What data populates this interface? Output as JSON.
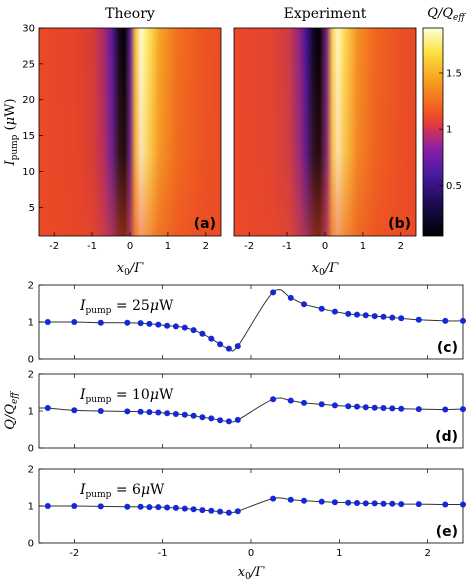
{
  "chart_data": [
    {
      "type": "heatmap",
      "title": "Theory",
      "panel_label": "(a)",
      "xlabel": "x₀/Γ",
      "ylabel": "I_pump (μW)",
      "xlim": [
        -2.4,
        2.4
      ],
      "ylim": [
        1,
        30
      ],
      "xticks": [
        "-2",
        "-1",
        "0",
        "1",
        "2"
      ],
      "yticks": [
        "5",
        "10",
        "15",
        "20",
        "25",
        "30"
      ]
    },
    {
      "type": "heatmap",
      "title": "Experiment",
      "panel_label": "(b)",
      "xlabel": "x₀/Γ",
      "xlim": [
        -2.4,
        2.4
      ],
      "ylim": [
        1,
        30
      ],
      "xticks": [
        "-2",
        "-1",
        "0",
        "1",
        "2"
      ]
    },
    {
      "type": "colorbar",
      "label": "Q/Q_eff",
      "range": [
        0.05,
        1.9
      ],
      "ticks": [
        "0.5",
        "1",
        "1.5"
      ]
    },
    {
      "type": "scatter",
      "panel_label": "(c)",
      "annotation": "I_pump = 25μW",
      "xlim": [
        -2.4,
        2.4
      ],
      "ylim": [
        0,
        2
      ],
      "yticks": [
        "0",
        "1",
        "2"
      ],
      "x": [
        -2.3,
        -2.0,
        -1.7,
        -1.4,
        -1.25,
        -1.15,
        -1.05,
        -0.95,
        -0.85,
        -0.75,
        -0.65,
        -0.55,
        -0.45,
        -0.35,
        -0.25,
        -0.15,
        0.25,
        0.45,
        0.6,
        0.8,
        0.95,
        1.1,
        1.2,
        1.3,
        1.4,
        1.5,
        1.6,
        1.7,
        1.9,
        2.2,
        2.4
      ],
      "y": [
        1.0,
        1.0,
        0.98,
        0.98,
        0.97,
        0.95,
        0.93,
        0.9,
        0.88,
        0.85,
        0.78,
        0.68,
        0.55,
        0.4,
        0.28,
        0.35,
        1.8,
        1.65,
        1.48,
        1.36,
        1.28,
        1.22,
        1.2,
        1.18,
        1.16,
        1.14,
        1.12,
        1.1,
        1.06,
        1.03,
        1.03
      ]
    },
    {
      "type": "scatter",
      "panel_label": "(d)",
      "annotation": "I_pump = 10μW",
      "ylabel": "Q/Q_eff",
      "xlim": [
        -2.4,
        2.4
      ],
      "ylim": [
        0,
        2
      ],
      "yticks": [
        "0",
        "1",
        "2"
      ],
      "x": [
        -2.3,
        -2.0,
        -1.7,
        -1.4,
        -1.25,
        -1.15,
        -1.05,
        -0.95,
        -0.85,
        -0.75,
        -0.65,
        -0.55,
        -0.45,
        -0.35,
        -0.25,
        -0.15,
        0.25,
        0.45,
        0.6,
        0.8,
        0.95,
        1.1,
        1.2,
        1.3,
        1.4,
        1.5,
        1.6,
        1.7,
        1.9,
        2.2,
        2.4
      ],
      "y": [
        1.08,
        1.02,
        1.0,
        0.99,
        0.98,
        0.97,
        0.96,
        0.94,
        0.92,
        0.9,
        0.87,
        0.83,
        0.8,
        0.75,
        0.72,
        0.76,
        1.32,
        1.28,
        1.22,
        1.18,
        1.15,
        1.13,
        1.12,
        1.1,
        1.09,
        1.08,
        1.07,
        1.06,
        1.05,
        1.04,
        1.05
      ]
    },
    {
      "type": "scatter",
      "panel_label": "(e)",
      "annotation": "I_pump = 6μW",
      "xlabel": "x₀/Γ",
      "xlim": [
        -2.4,
        2.4
      ],
      "ylim": [
        0,
        2
      ],
      "xticks": [
        "-2",
        "-1",
        "0",
        "1",
        "2"
      ],
      "yticks": [
        "0",
        "1",
        "2"
      ],
      "x": [
        -2.3,
        -2.0,
        -1.7,
        -1.4,
        -1.25,
        -1.15,
        -1.05,
        -0.95,
        -0.85,
        -0.75,
        -0.65,
        -0.55,
        -0.45,
        -0.35,
        -0.25,
        -0.15,
        0.25,
        0.45,
        0.6,
        0.8,
        0.95,
        1.1,
        1.2,
        1.3,
        1.4,
        1.5,
        1.6,
        1.7,
        1.9,
        2.2,
        2.4
      ],
      "y": [
        1.0,
        1.0,
        0.99,
        0.98,
        0.98,
        0.97,
        0.97,
        0.96,
        0.95,
        0.93,
        0.91,
        0.89,
        0.87,
        0.85,
        0.82,
        0.86,
        1.2,
        1.17,
        1.14,
        1.12,
        1.1,
        1.09,
        1.08,
        1.07,
        1.07,
        1.06,
        1.06,
        1.05,
        1.05,
        1.04,
        1.04
      ]
    }
  ],
  "colors": {
    "marker": "#1428d8",
    "fit_line": "#333333"
  }
}
